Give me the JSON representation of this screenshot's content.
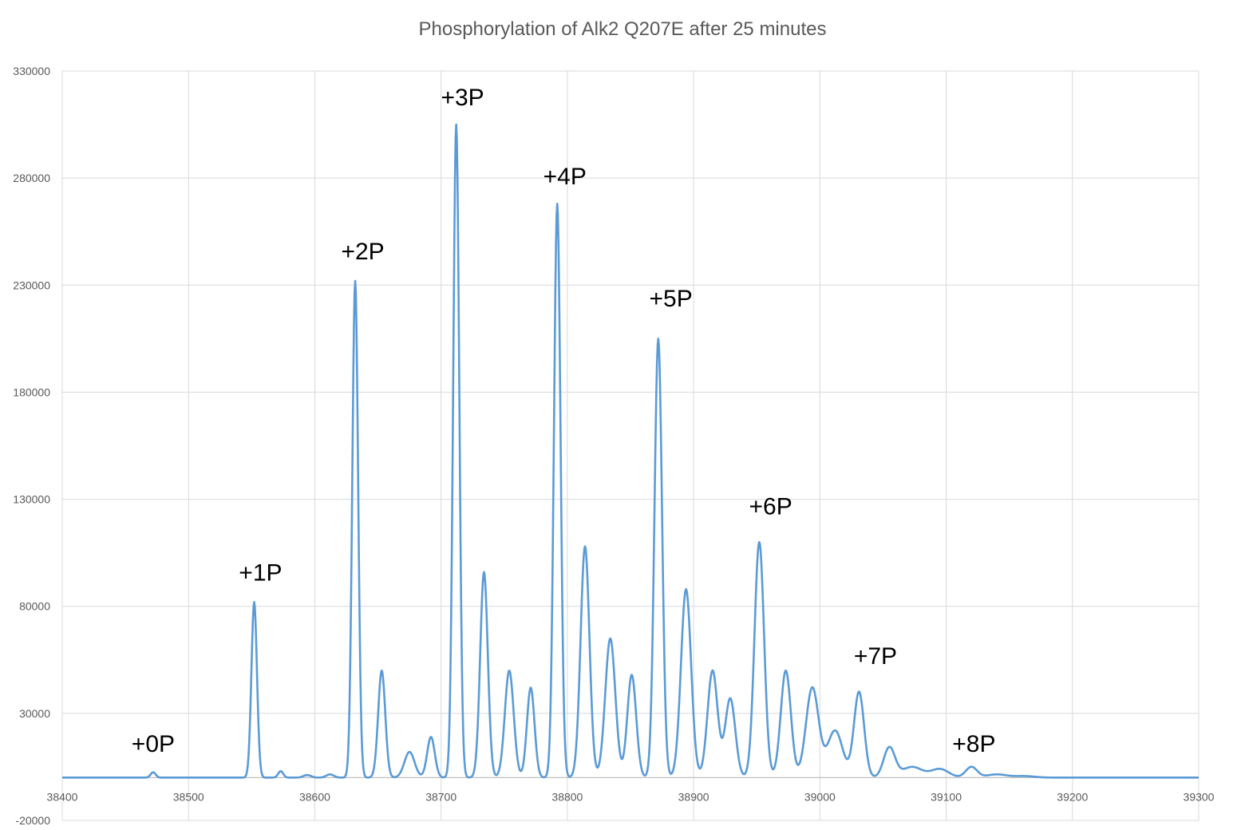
{
  "chart_data": {
    "type": "line",
    "title": "Phosphorylation of Alk2 Q207E after 25 minutes",
    "xlabel": "",
    "ylabel": "",
    "xlim": [
      38400,
      39300
    ],
    "ylim": [
      -20000,
      330000
    ],
    "x_ticks": [
      38400,
      38500,
      38600,
      38700,
      38800,
      38900,
      39000,
      39100,
      39200,
      39300
    ],
    "y_ticks": [
      -20000,
      30000,
      80000,
      130000,
      180000,
      230000,
      280000,
      330000
    ],
    "grid": true,
    "legend": "none",
    "series_color": "#5b9bd5",
    "series": [
      {
        "baseline": 0,
        "peaks": [
          {
            "x": 38472,
            "height": 2500,
            "width": 2.0
          },
          {
            "x": 38552,
            "height": 82000,
            "width": 2.2
          },
          {
            "x": 38573,
            "height": 3000,
            "width": 2.0
          },
          {
            "x": 38594,
            "height": 1200,
            "width": 3.0
          },
          {
            "x": 38612,
            "height": 1500,
            "width": 3.0
          },
          {
            "x": 38632,
            "height": 232000,
            "width": 2.3
          },
          {
            "x": 38653,
            "height": 50000,
            "width": 2.8
          },
          {
            "x": 38675,
            "height": 12000,
            "width": 4.0
          },
          {
            "x": 38692,
            "height": 19000,
            "width": 3.0
          },
          {
            "x": 38712,
            "height": 305000,
            "width": 2.4
          },
          {
            "x": 38734,
            "height": 96000,
            "width": 3.0
          },
          {
            "x": 38754,
            "height": 50000,
            "width": 3.5
          },
          {
            "x": 38771,
            "height": 42000,
            "width": 3.0
          },
          {
            "x": 38792,
            "height": 268000,
            "width": 2.6
          },
          {
            "x": 38814,
            "height": 108000,
            "width": 3.5
          },
          {
            "x": 38834,
            "height": 65000,
            "width": 4.0
          },
          {
            "x": 38851,
            "height": 48000,
            "width": 3.5
          },
          {
            "x": 38872,
            "height": 205000,
            "width": 3.0
          },
          {
            "x": 38894,
            "height": 88000,
            "width": 4.0
          },
          {
            "x": 38915,
            "height": 50000,
            "width": 4.0
          },
          {
            "x": 38929,
            "height": 37000,
            "width": 4.0
          },
          {
            "x": 38952,
            "height": 110000,
            "width": 3.8
          },
          {
            "x": 38973,
            "height": 50000,
            "width": 4.0
          },
          {
            "x": 38994,
            "height": 42000,
            "width": 5.0
          },
          {
            "x": 39012,
            "height": 22000,
            "width": 6.0
          },
          {
            "x": 39031,
            "height": 40000,
            "width": 4.0
          },
          {
            "x": 39055,
            "height": 14000,
            "width": 4.5
          },
          {
            "x": 39073,
            "height": 5000,
            "width": 8.0
          },
          {
            "x": 39095,
            "height": 4000,
            "width": 7.0
          },
          {
            "x": 39120,
            "height": 5000,
            "width": 4.5
          },
          {
            "x": 39140,
            "height": 1500,
            "width": 8.0
          },
          {
            "x": 39162,
            "height": 700,
            "width": 8.0
          }
        ]
      }
    ],
    "annotations": [
      {
        "text": "+0P",
        "x": 38472,
        "y": 12000
      },
      {
        "text": "+1P",
        "x": 38557,
        "y": 92000
      },
      {
        "text": "+2P",
        "x": 38638,
        "y": 242000
      },
      {
        "text": "+3P",
        "x": 38717,
        "y": 314000
      },
      {
        "text": "+4P",
        "x": 38798,
        "y": 277000
      },
      {
        "text": "+5P",
        "x": 38882,
        "y": 220000
      },
      {
        "text": "+6P",
        "x": 38961,
        "y": 123000
      },
      {
        "text": "+7P",
        "x": 39044,
        "y": 53000
      },
      {
        "text": "+8P",
        "x": 39122,
        "y": 12000
      }
    ]
  }
}
